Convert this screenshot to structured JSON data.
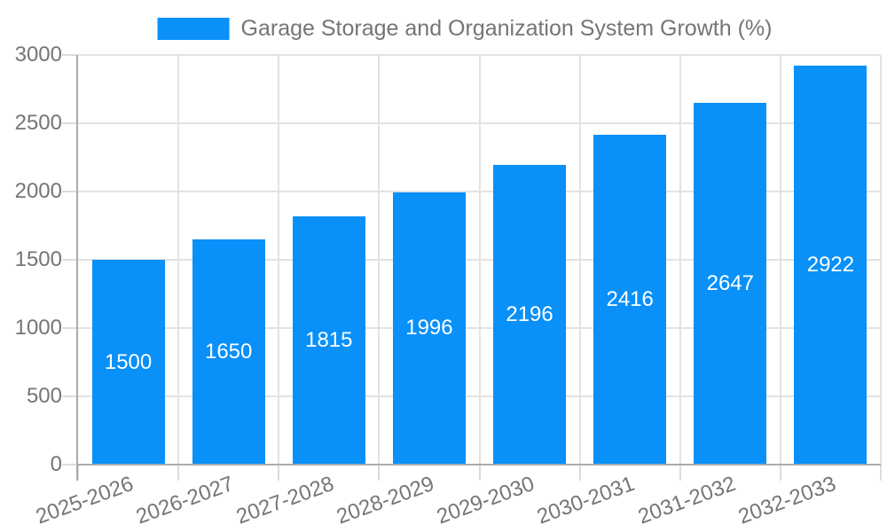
{
  "legend": {
    "label": "Garage Storage and Organization System Growth (%)",
    "swatch_color": "#0990f9"
  },
  "colors": {
    "bar": "#0990f9",
    "grid": "#e3e3e3",
    "axis": "#ababab",
    "tick": "#dcdcdc",
    "text": "#757575",
    "bar_label": "#ffffff",
    "background": "#ffffff"
  },
  "chart_data": {
    "type": "bar",
    "title": "Garage Storage and Organization System Growth (%)",
    "categories": [
      "2025-2026",
      "2026-2027",
      "2027-2028",
      "2028-2029",
      "2029-2030",
      "2030-2031",
      "2031-2032",
      "2032-2033"
    ],
    "values": [
      1500,
      1650,
      1815,
      1996,
      2196,
      2416,
      2647,
      2922
    ],
    "xlabel": "",
    "ylabel": "",
    "ylim": [
      0,
      3000
    ],
    "yticks": [
      0,
      500,
      1000,
      1500,
      2000,
      2500,
      3000
    ],
    "grid": true,
    "legend_position": "top",
    "bar_labels": "inside-center-white",
    "x_label_rotation_deg": -20
  }
}
